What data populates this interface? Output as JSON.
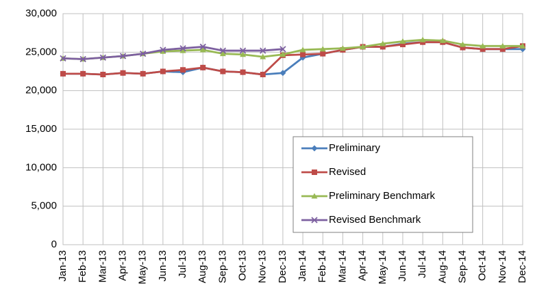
{
  "chart_data": {
    "type": "line",
    "categories": [
      "Jan-13",
      "Feb-13",
      "Mar-13",
      "Apr-13",
      "May-13",
      "Jun-13",
      "Jul-13",
      "Aug-13",
      "Sep-13",
      "Oct-13",
      "Nov-13",
      "Dec-13",
      "Jan-14",
      "Feb-14",
      "Mar-14",
      "Apr-14",
      "May-14",
      "Jun-14",
      "Jul-14",
      "Aug-14",
      "Sep-14",
      "Oct-14",
      "Nov-14",
      "Dec-14"
    ],
    "series": [
      {
        "name": "Preliminary",
        "color": "#4a7ebb",
        "marker": "diamond",
        "values": [
          22200,
          22200,
          22100,
          22300,
          22200,
          22500,
          22400,
          23000,
          22500,
          22400,
          22100,
          22300,
          24300,
          24800,
          25300,
          25700,
          25700,
          26100,
          26300,
          26300,
          25600,
          25400,
          25400,
          25400
        ]
      },
      {
        "name": "Revised",
        "color": "#be4b48",
        "marker": "square",
        "values": [
          22200,
          22200,
          22100,
          22300,
          22200,
          22500,
          22700,
          23000,
          22500,
          22400,
          22100,
          24600,
          24700,
          24800,
          25300,
          25700,
          25700,
          26000,
          26300,
          26300,
          25600,
          25400,
          25400,
          25800
        ]
      },
      {
        "name": "Preliminary Benchmark",
        "color": "#98b954",
        "marker": "triangle",
        "values": [
          24200,
          24100,
          24300,
          24500,
          24800,
          25100,
          25200,
          25300,
          24800,
          24700,
          24400,
          24700,
          25300,
          25400,
          25500,
          25700,
          26100,
          26400,
          26600,
          26500,
          26000,
          25800,
          25800,
          25800
        ]
      },
      {
        "name": "Revised Benchmark",
        "color": "#7d60a0",
        "marker": "x",
        "values": [
          24200,
          24100,
          24300,
          24500,
          24800,
          25300,
          25500,
          25700,
          25200,
          25200,
          25200,
          25400,
          null,
          null,
          null,
          null,
          null,
          null,
          null,
          null,
          null,
          null,
          null,
          null
        ]
      }
    ],
    "ylim": [
      0,
      30000
    ],
    "yticks": [
      0,
      {
        "value": 5000,
        "label": "5,000"
      },
      {
        "value": 10000,
        "label": "10,000"
      },
      {
        "value": 15000,
        "label": "15,000"
      },
      {
        "value": 20000,
        "label": "20,000"
      },
      {
        "value": 25000,
        "label": "25,000"
      },
      {
        "value": 30000,
        "label": "30,000"
      }
    ],
    "grid": true
  }
}
